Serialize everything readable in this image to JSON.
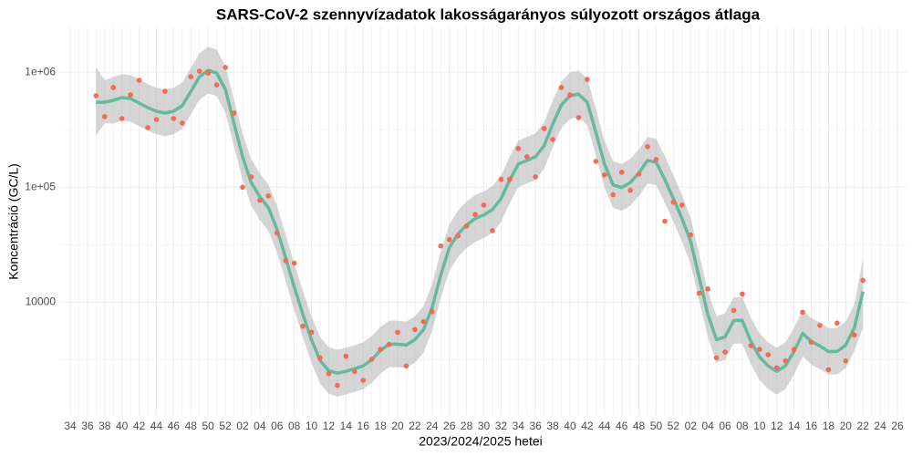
{
  "chart_data": {
    "type": "line",
    "title": "SARS-CoV-2 szennyvízadatok lakosságarányos súlyozott országos átlaga",
    "x_label": "2023/2024/2025 hetei",
    "y_label": "Koncentráció (GC/L)",
    "log_y": true,
    "grid": true,
    "categories": [
      "34",
      null,
      "36",
      null,
      "38",
      null,
      "40",
      null,
      "42",
      null,
      "44",
      null,
      "46",
      null,
      "48",
      null,
      "50",
      null,
      "52",
      null,
      "02",
      null,
      "04",
      null,
      "06",
      null,
      "08",
      null,
      "10",
      null,
      "12",
      null,
      "14",
      null,
      "16",
      null,
      "18",
      null,
      "20",
      null,
      "22",
      null,
      "24",
      null,
      "26",
      null,
      "28",
      null,
      "30",
      null,
      "32",
      null,
      "34",
      null,
      "36",
      null,
      "38",
      null,
      "40",
      null,
      "42",
      null,
      "44",
      null,
      "46",
      null,
      "48",
      null,
      "50",
      null,
      "52",
      null,
      "02",
      null,
      "04",
      null,
      "06",
      null,
      "08",
      null,
      "10",
      null,
      "12",
      null,
      "14",
      null,
      "16",
      null,
      "18",
      null,
      "20",
      null,
      "22",
      null,
      "24",
      null,
      "26"
    ],
    "ylim": [
      1050,
      2450000
    ],
    "yticks": [
      10000,
      {
        "value": 100000,
        "label": "1e+05"
      },
      {
        "value": 1000000,
        "label": "1e+06"
      }
    ],
    "y_minor_ticks": [
      3162,
      31623,
      316228
    ],
    "series": [
      {
        "type": "scatter",
        "color": "#f26b52",
        "values": [
          null,
          null,
          null,
          623000,
          410000,
          735000,
          395000,
          634000,
          849000,
          330000,
          388000,
          682000,
          395000,
          361000,
          913000,
          1020000,
          982000,
          775000,
          1100000,
          441000,
          100000,
          123000,
          77000,
          84000,
          40000,
          23000,
          21900,
          6200,
          5500,
          3300,
          2400,
          1900,
          3400,
          2500,
          2100,
          3200,
          3900,
          4300,
          5500,
          2800,
          5800,
          6800,
          8300,
          30900,
          35000,
          37800,
          46000,
          58000,
          70000,
          42000,
          117000,
          117000,
          217000,
          184000,
          123000,
          324000,
          260000,
          735000,
          634000,
          403000,
          865000,
          168000,
          128000,
          86000,
          135000,
          94000,
          130000,
          225000,
          174000,
          50600,
          74000,
          70000,
          38500,
          12000,
          13100,
          3300,
          3700,
          8500,
          11800,
          4200,
          3900,
          3500,
          2700,
          3100,
          3900,
          8200,
          4500,
          6300,
          2600,
          6600,
          3100,
          5200,
          15500,
          null,
          null,
          null,
          null
        ]
      },
      {
        "type": "line",
        "color": "#66b99c",
        "band_color": "#b3b3b3",
        "values": [
          null,
          null,
          null,
          548000,
          548000,
          569000,
          601000,
          590000,
          538000,
          492000,
          457000,
          441000,
          457000,
          510000,
          682000,
          912000,
          1037000,
          982000,
          708000,
          361000,
          184000,
          110000,
          82600,
          66400,
          42900,
          24400,
          13600,
          7890,
          4740,
          3120,
          2550,
          2420,
          2510,
          2650,
          2800,
          3180,
          3810,
          4330,
          4330,
          4250,
          4740,
          5790,
          8970,
          17300,
          29800,
          39200,
          47000,
          53400,
          57400,
          64000,
          79600,
          115000,
          159000,
          171000,
          184000,
          229000,
          354000,
          519000,
          623000,
          645000,
          548000,
          301000,
          159000,
          105000,
          99100,
          110000,
          133000,
          171000,
          165000,
          117000,
          79600,
          53400,
          33900,
          16300,
          7890,
          4740,
          5010,
          6950,
          6950,
          4570,
          3360,
          2800,
          2510,
          2800,
          3740,
          5380,
          4570,
          4180,
          3740,
          3740,
          4250,
          6010,
          12400,
          null,
          null,
          null,
          null
        ],
        "lower": [
          null,
          null,
          null,
          280000,
          360000,
          358000,
          379000,
          372000,
          339000,
          310000,
          288000,
          278000,
          288000,
          321000,
          430000,
          575000,
          653000,
          619000,
          446000,
          227000,
          116000,
          69300,
          52000,
          41800,
          27000,
          15400,
          8570,
          4970,
          2990,
          1970,
          1610,
          1520,
          1580,
          1670,
          1760,
          2000,
          2400,
          2730,
          2730,
          2680,
          2990,
          3650,
          5650,
          10900,
          18800,
          24700,
          29600,
          33600,
          36200,
          40300,
          50100,
          72500,
          100000,
          108000,
          116000,
          144000,
          223000,
          327000,
          392000,
          406000,
          345000,
          190000,
          100000,
          66200,
          62400,
          69300,
          83800,
          108000,
          104000,
          73700,
          50100,
          33600,
          21400,
          10300,
          4970,
          2990,
          3160,
          4380,
          4380,
          2880,
          2120,
          1760,
          1580,
          1760,
          2360,
          3390,
          2880,
          2630,
          2360,
          2360,
          2680,
          3790,
          6000,
          null,
          null,
          null,
          null
        ],
        "upper": [
          null,
          null,
          null,
          1100000,
          850000,
          910000,
          962000,
          944000,
          861000,
          787000,
          731000,
          706000,
          731000,
          816000,
          1090000,
          1460000,
          1660000,
          1570000,
          1130000,
          578000,
          294000,
          176000,
          132000,
          106000,
          68600,
          39000,
          21800,
          12600,
          7580,
          4990,
          4080,
          3870,
          4020,
          4240,
          4480,
          5090,
          6100,
          6930,
          6930,
          6800,
          7580,
          9260,
          14400,
          27700,
          47700,
          62700,
          75200,
          85400,
          91800,
          102000,
          127000,
          184000,
          254000,
          274000,
          294000,
          366000,
          566000,
          830000,
          997000,
          1030000,
          877000,
          482000,
          254000,
          168000,
          159000,
          176000,
          213000,
          274000,
          264000,
          187000,
          127000,
          85400,
          54200,
          26100,
          12600,
          7580,
          8020,
          11100,
          11100,
          7310,
          5380,
          4480,
          4020,
          4480,
          5980,
          8610,
          7310,
          6690,
          5980,
          5980,
          6800,
          9620,
          24000,
          null,
          null,
          null,
          null
        ]
      }
    ]
  }
}
